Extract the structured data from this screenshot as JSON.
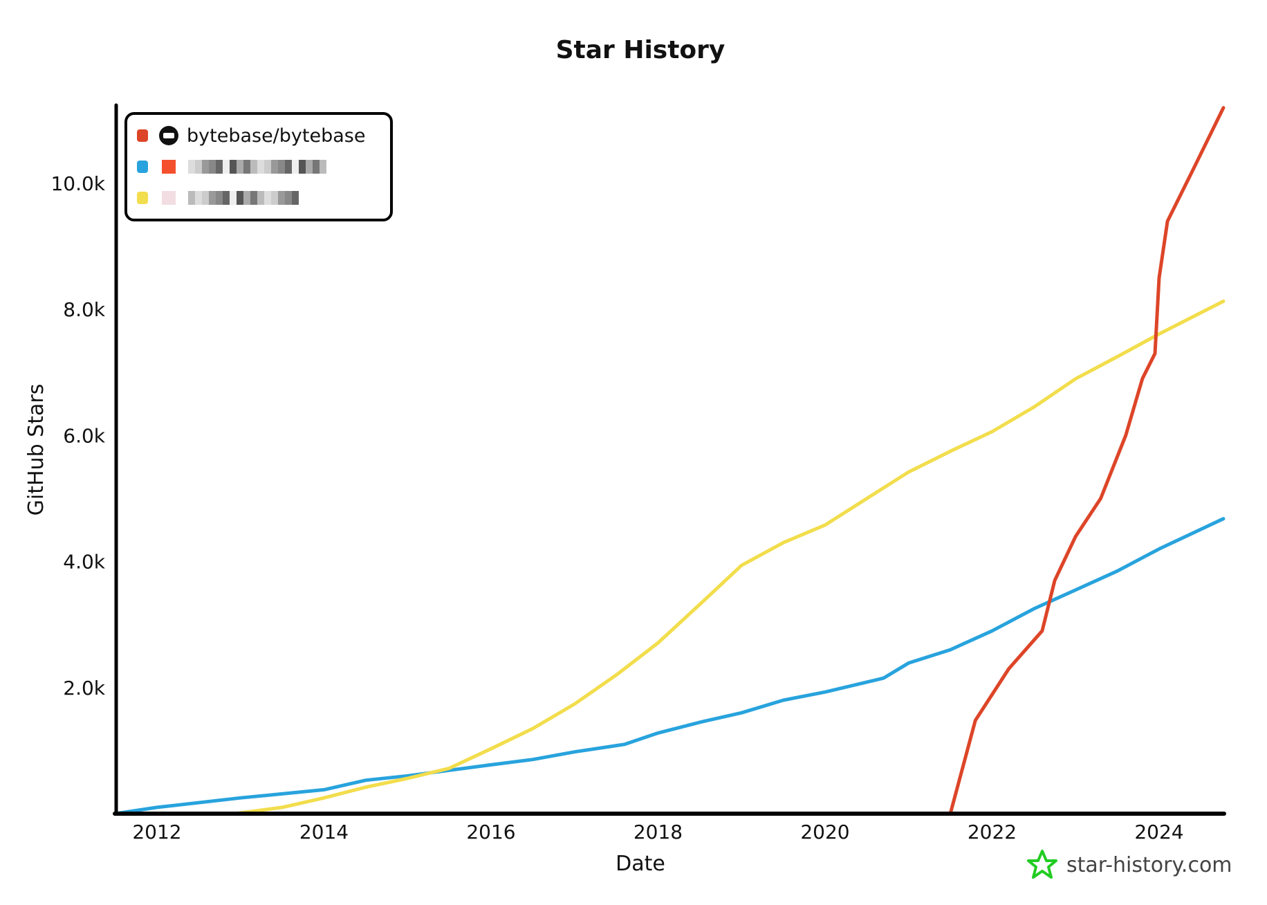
{
  "chart_data": {
    "type": "line",
    "title": "Star History",
    "xlabel": "Date",
    "ylabel": "GitHub Stars",
    "xlim": [
      2011.5,
      2024.8
    ],
    "ylim": [
      0,
      11300
    ],
    "x_ticks": [
      "2012",
      "2014",
      "2016",
      "2018",
      "2020",
      "2022",
      "2024"
    ],
    "y_ticks": [
      "2.0k",
      "4.0k",
      "6.0k",
      "8.0k",
      "10.0k"
    ],
    "y_tick_values": [
      2000,
      4000,
      6000,
      8000,
      10000
    ],
    "legend_placement": "top-left",
    "grid": false,
    "series": [
      {
        "name": "bytebase/bytebase",
        "color": "#dd4528",
        "icon": "github-icon",
        "x": [
          2021.5,
          2021.8,
          2022.2,
          2022.6,
          2022.75,
          2023.0,
          2023.3,
          2023.6,
          2023.8,
          2023.95,
          2024.0,
          2024.1,
          2024.4,
          2024.77
        ],
        "y": [
          0,
          1480,
          2300,
          2900,
          3700,
          4400,
          5000,
          6000,
          6900,
          7300,
          8500,
          9400,
          10200,
          11200
        ]
      },
      {
        "color": "#28a3dd",
        "icon": "pixelated-avatar",
        "x": [
          2011.5,
          2012,
          2013,
          2014,
          2014.5,
          2015,
          2016,
          2016.5,
          2017,
          2017.6,
          2018,
          2018.5,
          2019,
          2019.5,
          2020,
          2020.7,
          2021,
          2021.5,
          2022,
          2022.5,
          2023,
          2023.5,
          2024,
          2024.77
        ],
        "y": [
          0,
          100,
          250,
          380,
          530,
          600,
          775,
          860,
          980,
          1100,
          1280,
          1450,
          1600,
          1800,
          1930,
          2150,
          2390,
          2600,
          2900,
          3250,
          3550,
          3850,
          4200,
          4680
        ]
      },
      {
        "color": "#f2dd4c",
        "icon": "pixelated-avatar",
        "x": [
          2012.93,
          2013.5,
          2014,
          2014.5,
          2015,
          2015.5,
          2016,
          2016.5,
          2017,
          2017.5,
          2018,
          2018.5,
          2019,
          2019.5,
          2020,
          2020.5,
          2021,
          2021.5,
          2022,
          2022.5,
          2023,
          2023.5,
          2024,
          2024.77
        ],
        "y": [
          0,
          100,
          250,
          420,
          560,
          720,
          1030,
          1350,
          1740,
          2200,
          2710,
          3320,
          3940,
          4300,
          4580,
          5000,
          5420,
          5750,
          6060,
          6450,
          6900,
          7250,
          7610,
          8130
        ]
      }
    ]
  },
  "watermark": {
    "text": "star-history.com",
    "color": "#22cc22"
  }
}
